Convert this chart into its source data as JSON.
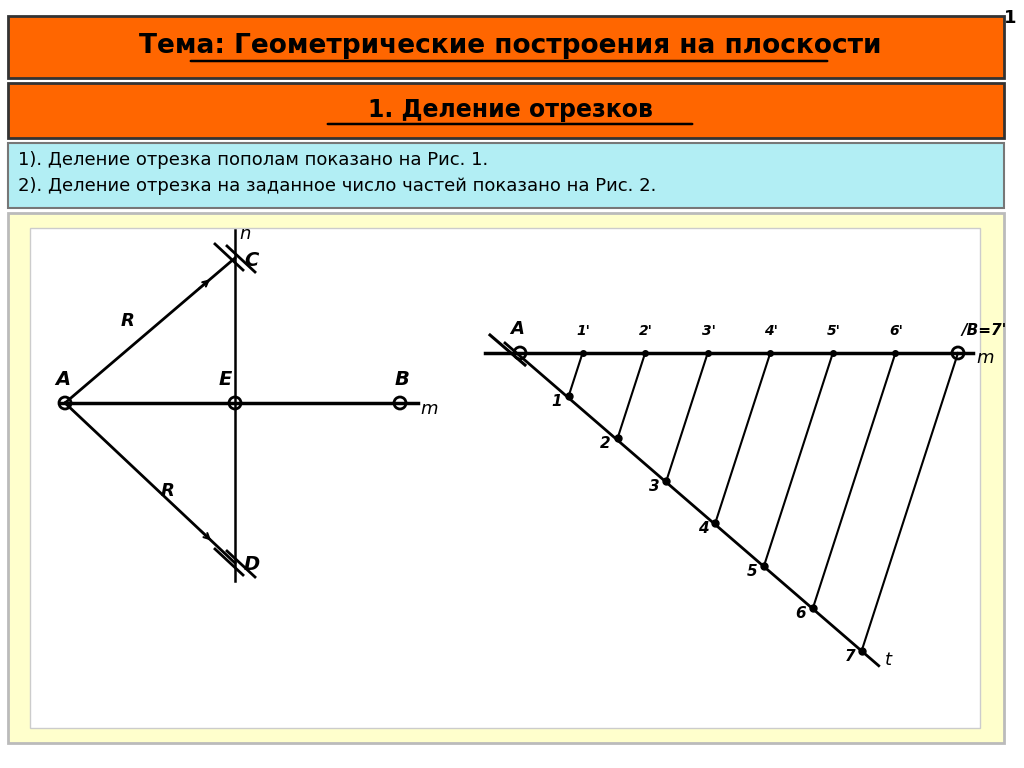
{
  "title1": "Тема: Геометрические построения на плоскости",
  "title2": "1. Деление отрезков",
  "text_line1": "1). Деление отрезка пополам показано на Рис. 1.",
  "text_line2": "2). Деление отрезка на заданное число частей показано на Рис. 2.",
  "bg_color": "#ffffff",
  "header1_color": "#FF6600",
  "header2_color": "#FF6600",
  "text_bg_color": "#B2EEF4",
  "diagram_bg_color": "#FFFFCC",
  "slide_number": "1"
}
